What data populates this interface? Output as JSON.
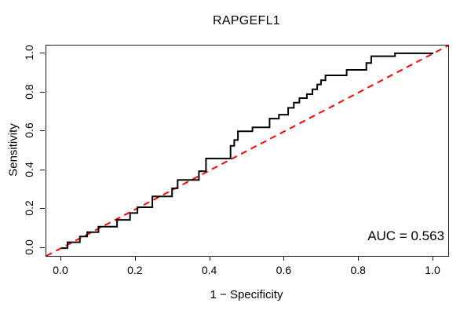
{
  "chart_data": {
    "type": "line",
    "subtype": "roc-step-curve",
    "title": "RAPGEFL1",
    "xlabel": "1 − Specificity",
    "ylabel": "Sensitivity",
    "annotation": "AUC = 0.563",
    "auc": 0.563,
    "xlim": [
      0,
      1
    ],
    "ylim": [
      0,
      1
    ],
    "axis_padding": 0.04,
    "grid": false,
    "legend": null,
    "x_ticks": [
      {
        "value": 0.0,
        "label": "0.0"
      },
      {
        "value": 0.2,
        "label": "0.2"
      },
      {
        "value": 0.4,
        "label": "0.4"
      },
      {
        "value": 0.6,
        "label": "0.6"
      },
      {
        "value": 0.8,
        "label": "0.8"
      },
      {
        "value": 1.0,
        "label": "1.0"
      }
    ],
    "y_ticks": [
      {
        "value": 0.0,
        "label": "0.0"
      },
      {
        "value": 0.2,
        "label": "0.2"
      },
      {
        "value": 0.4,
        "label": "0.4"
      },
      {
        "value": 0.6,
        "label": "0.6"
      },
      {
        "value": 0.8,
        "label": "0.8"
      },
      {
        "value": 1.0,
        "label": "1.0"
      }
    ],
    "roc_curve": {
      "color": "#000000",
      "line_width": 2,
      "start": [
        0,
        0
      ],
      "end": [
        1,
        1
      ],
      "steps": [
        [
          0.017,
          0.03
        ],
        [
          0.05,
          0.06
        ],
        [
          0.07,
          0.082
        ],
        [
          0.1,
          0.11
        ],
        [
          0.15,
          0.145
        ],
        [
          0.185,
          0.18
        ],
        [
          0.205,
          0.21
        ],
        [
          0.245,
          0.265
        ],
        [
          0.298,
          0.307
        ],
        [
          0.313,
          0.35
        ],
        [
          0.37,
          0.395
        ],
        [
          0.389,
          0.46
        ],
        [
          0.455,
          0.525
        ],
        [
          0.465,
          0.555
        ],
        [
          0.475,
          0.6
        ],
        [
          0.514,
          0.62
        ],
        [
          0.56,
          0.665
        ],
        [
          0.585,
          0.685
        ],
        [
          0.61,
          0.72
        ],
        [
          0.625,
          0.747
        ],
        [
          0.64,
          0.77
        ],
        [
          0.66,
          0.79
        ],
        [
          0.675,
          0.815
        ],
        [
          0.688,
          0.84
        ],
        [
          0.698,
          0.862
        ],
        [
          0.71,
          0.887
        ],
        [
          0.767,
          0.915
        ],
        [
          0.82,
          0.95
        ],
        [
          0.833,
          0.985
        ],
        [
          0.897,
          1.0
        ]
      ]
    },
    "reference_line": {
      "color": "#FF0000",
      "style": "dashed",
      "line_width": 2,
      "from": [
        0,
        0
      ],
      "to": [
        1,
        1
      ]
    }
  }
}
